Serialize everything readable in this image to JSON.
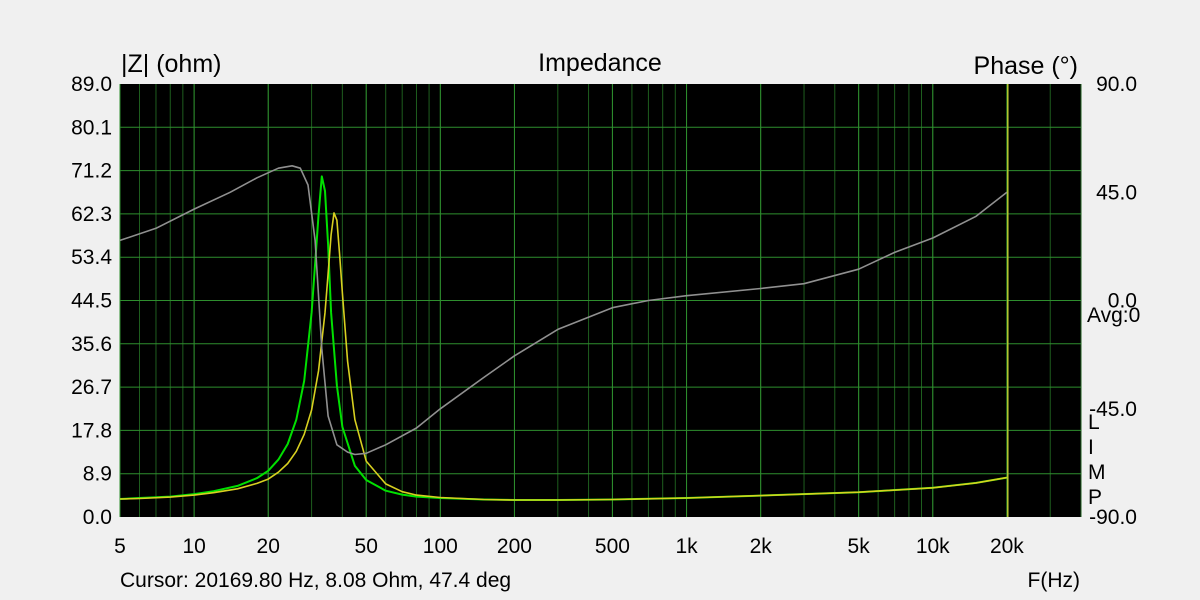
{
  "chart_data": {
    "type": "line",
    "title": "Impedance",
    "ylabel_left": "|Z| (ohm)",
    "ylabel_right": "Phase (°)",
    "xlabel": "F(Hz)",
    "x_scale": "log",
    "xlim": [
      5,
      40000
    ],
    "ylim_left": [
      0,
      89
    ],
    "ylim_right": [
      -90,
      90
    ],
    "grid": true,
    "background": "#000000",
    "x_ticks": [
      {
        "value": 5,
        "label": "5"
      },
      {
        "value": 10,
        "label": "10"
      },
      {
        "value": 20,
        "label": "20"
      },
      {
        "value": 50,
        "label": "50"
      },
      {
        "value": 100,
        "label": "100"
      },
      {
        "value": 200,
        "label": "200"
      },
      {
        "value": 500,
        "label": "500"
      },
      {
        "value": 1000,
        "label": "1k"
      },
      {
        "value": 2000,
        "label": "2k"
      },
      {
        "value": 5000,
        "label": "5k"
      },
      {
        "value": 10000,
        "label": "10k"
      },
      {
        "value": 20000,
        "label": "20k"
      }
    ],
    "y_left_ticks": [
      "0.0",
      "8.9",
      "17.8",
      "26.7",
      "35.6",
      "44.5",
      "53.4",
      "62.3",
      "71.2",
      "80.1",
      "89.0"
    ],
    "y_right_ticks": [
      {
        "value": 90,
        "label": "90.0"
      },
      {
        "value": 45,
        "label": "45.0"
      },
      {
        "value": 0,
        "label": "0.0"
      },
      {
        "value": -45,
        "label": "-45.0"
      },
      {
        "value": -90,
        "label": "-90.0"
      }
    ],
    "avg_label": "Avg:0",
    "side_letters": [
      "L",
      "I",
      "M",
      "P"
    ],
    "cursor_text": "Cursor: 20169.80 Hz, 8.08 Ohm, 47.4 deg",
    "cursor_x": 20169.8,
    "series": [
      {
        "axis": "left",
        "color": "#00e000",
        "x": [
          5,
          6,
          8,
          10,
          12,
          15,
          18,
          20,
          22,
          24,
          26,
          28,
          30,
          31,
          32,
          33,
          34,
          35,
          36,
          38,
          40,
          45,
          50,
          60,
          70,
          80,
          100,
          150,
          200,
          300,
          500,
          1000,
          2000,
          5000,
          10000,
          15000,
          20000
        ],
        "y": [
          3.7,
          3.9,
          4.2,
          4.7,
          5.3,
          6.4,
          8.0,
          9.5,
          11.8,
          15.0,
          20.0,
          28.0,
          42.0,
          52.0,
          62.0,
          70.0,
          67.0,
          56.0,
          42.0,
          27.0,
          18.5,
          10.5,
          7.6,
          5.4,
          4.6,
          4.2,
          3.9,
          3.6,
          3.5,
          3.5,
          3.6,
          3.9,
          4.4,
          5.1,
          6.0,
          7.0,
          8.1
        ]
      },
      {
        "axis": "left",
        "color": "#d8d020",
        "x": [
          5,
          6,
          8,
          10,
          12,
          15,
          18,
          20,
          22,
          24,
          26,
          28,
          30,
          32,
          34,
          35,
          36,
          37,
          38,
          39,
          40,
          42,
          45,
          50,
          60,
          70,
          80,
          100,
          150,
          200,
          300,
          500,
          1000,
          2000,
          5000,
          10000,
          15000,
          20000
        ],
        "y": [
          3.7,
          3.8,
          4.1,
          4.5,
          5.0,
          5.8,
          6.9,
          7.8,
          9.2,
          11.0,
          13.5,
          17.0,
          22.0,
          30.0,
          42.0,
          50.0,
          58.0,
          62.5,
          61.0,
          54.0,
          46.0,
          32.0,
          20.0,
          11.5,
          6.8,
          5.2,
          4.5,
          4.0,
          3.6,
          3.5,
          3.5,
          3.6,
          3.9,
          4.4,
          5.1,
          6.0,
          7.0,
          8.1
        ]
      },
      {
        "axis": "right",
        "color": "#909090",
        "x": [
          5,
          7,
          10,
          14,
          18,
          22,
          25,
          27,
          29,
          31,
          33,
          35,
          38,
          42,
          45,
          50,
          60,
          80,
          100,
          150,
          200,
          300,
          500,
          700,
          1000,
          2000,
          3000,
          5000,
          7000,
          10000,
          15000,
          20000
        ],
        "y": [
          25.0,
          30.0,
          38.0,
          45.0,
          51.0,
          55.0,
          56.0,
          55.0,
          48.0,
          25.0,
          -20.0,
          -48.0,
          -60.0,
          -63.0,
          -64.0,
          -63.5,
          -60.0,
          -53.0,
          -45.0,
          -32.0,
          -23.0,
          -12.0,
          -3.0,
          0.0,
          2.0,
          5.0,
          7.0,
          13.0,
          20.0,
          26.0,
          35.0,
          45.0
        ]
      }
    ]
  }
}
